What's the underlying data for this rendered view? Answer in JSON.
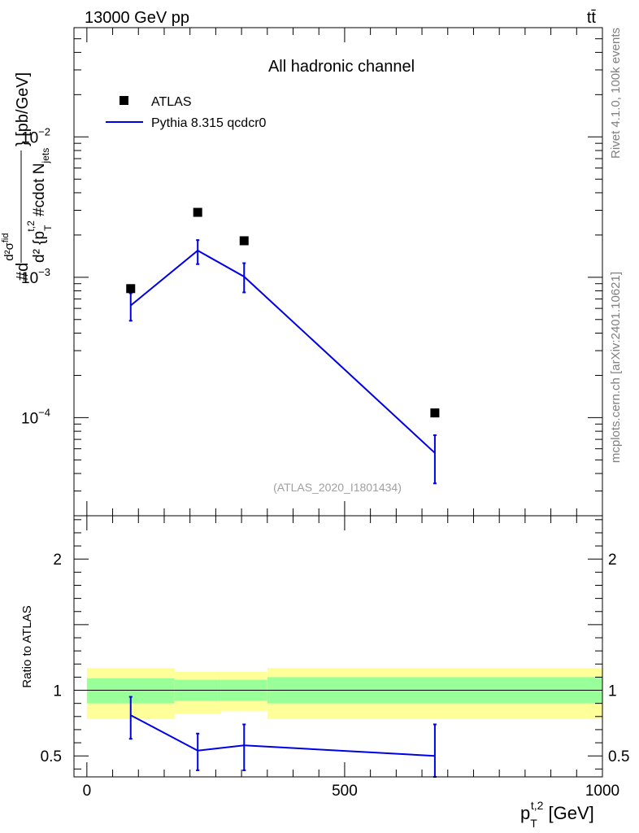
{
  "header": {
    "energy_label": "13000 GeV pp",
    "process_label": "tt̄"
  },
  "side_labels": {
    "rivet": "Rivet 4.1.0,  100k events",
    "mcplots": "mcplots.cern.ch [arXiv:2401.10621]"
  },
  "chart_data": [
    {
      "type": "scatter",
      "panel": "main",
      "title": "All hadronic channel",
      "watermark": "(ATLAS_2020_I1801434)",
      "yscale": "log",
      "ylim": [
        2e-05,
        0.06
      ],
      "xlim": [
        -25,
        1000
      ],
      "ylabel_parts": {
        "hash_d": "#d",
        "numerator": "d²σ",
        "numerator_sup": "fid",
        "denominator": "d² {p",
        "denominator_sup": "t,2",
        "denominator_sub": "T",
        "denominator_rest": " #cdot N",
        "denominator_sub2": "jets",
        "units": "} [pb/GeV]"
      },
      "yticks": [
        {
          "value": 0.0001,
          "base": "10",
          "exp": "−4"
        },
        {
          "value": 0.001,
          "base": "10",
          "exp": "−3"
        },
        {
          "value": 0.01,
          "base": "10",
          "exp": "−2"
        }
      ],
      "legend": [
        {
          "name": "ATLAS",
          "marker": "square",
          "color": "#000000"
        },
        {
          "name": "Pythia 8.315 qcdcr0",
          "marker": "line",
          "color": "#0000e6"
        }
      ],
      "series": [
        {
          "name": "ATLAS",
          "x": [
            85,
            215,
            305,
            675
          ],
          "y": [
            0.00083,
            0.0029,
            0.00182,
            0.000108
          ]
        },
        {
          "name": "Pythia 8.315 qcdcr0",
          "x": [
            85,
            215,
            305,
            675
          ],
          "y": [
            0.00063,
            0.00155,
            0.00101,
            5.6e-05
          ],
          "yerr_low": [
            0.00049,
            0.00124,
            0.00078,
            3.4e-05
          ],
          "yerr_high": [
            0.00077,
            0.00184,
            0.00126,
            7.5e-05
          ]
        }
      ]
    },
    {
      "type": "line",
      "panel": "ratio",
      "ylabel": "Ratio to ATLAS",
      "xlabel_base": "p",
      "xlabel_sup": "t,2",
      "xlabel_sub": "T",
      "xlabel_units": " [GeV]",
      "xlim": [
        -25,
        1000
      ],
      "ylim": [
        0.34,
        2.33
      ],
      "xticks": [
        {
          "value": 0,
          "label": "0"
        },
        {
          "value": 500,
          "label": "500"
        },
        {
          "value": 1000,
          "label": "1000"
        }
      ],
      "yticks": [
        {
          "value": 0.5,
          "label": "0.5"
        },
        {
          "value": 1,
          "label": "1"
        },
        {
          "value": 2,
          "label": "2"
        }
      ],
      "bands": [
        {
          "x0": 0,
          "x1": 170,
          "inner": [
            0.9,
            1.09
          ],
          "outer": [
            0.78,
            1.17
          ]
        },
        {
          "x0": 170,
          "x1": 260,
          "inner": [
            0.92,
            1.08
          ],
          "outer": [
            0.82,
            1.14
          ]
        },
        {
          "x0": 260,
          "x1": 350,
          "inner": [
            0.92,
            1.08
          ],
          "outer": [
            0.84,
            1.14
          ]
        },
        {
          "x0": 350,
          "x1": 1000,
          "inner": [
            0.9,
            1.1
          ],
          "outer": [
            0.78,
            1.17
          ]
        }
      ],
      "band_colors": {
        "inner": "#99ff99",
        "outer": "#ffff99"
      },
      "series": [
        {
          "name": "Pythia 8.315 qcdcr0",
          "x": [
            85,
            215,
            305,
            675
          ],
          "y": [
            0.81,
            0.54,
            0.58,
            0.5
          ],
          "yerr_low": [
            0.63,
            0.39,
            0.39,
            0.34
          ],
          "yerr_high": [
            0.95,
            0.67,
            0.74,
            0.74
          ]
        }
      ]
    }
  ]
}
